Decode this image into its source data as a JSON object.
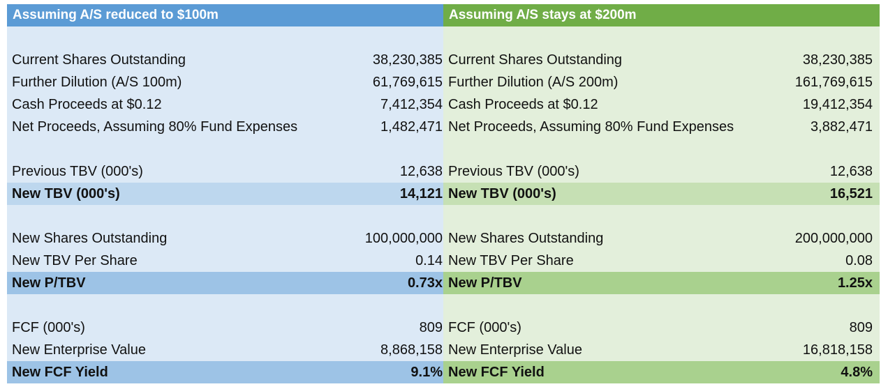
{
  "left": {
    "header": "Assuming A/S reduced to $100m",
    "rows": [
      {
        "label": "Current Shares Outstanding",
        "value": "38,230,385"
      },
      {
        "label": "Further Dilution (A/S 100m)",
        "value": "61,769,615"
      },
      {
        "label": "Cash Proceeds at $0.12",
        "value": "7,412,354"
      },
      {
        "label": "Net Proceeds, Assuming 80% Fund Expenses",
        "value": "1,482,471"
      },
      {
        "label": "Previous TBV (000's)",
        "value": "12,638"
      },
      {
        "label": "New TBV (000's)",
        "value": "14,121"
      },
      {
        "label": "New Shares Outstanding",
        "value": "100,000,000"
      },
      {
        "label": "New TBV Per Share",
        "value": "0.14"
      },
      {
        "label": "New P/TBV",
        "value": "0.73x"
      },
      {
        "label": "FCF (000's)",
        "value": "809"
      },
      {
        "label": "New Enterprise Value",
        "value": "8,868,158"
      },
      {
        "label": "New FCF Yield",
        "value": "9.1%"
      }
    ]
  },
  "right": {
    "header": "Assuming A/S stays at $200m",
    "rows": [
      {
        "label": "Current Shares Outstanding",
        "value": "38,230,385"
      },
      {
        "label": "Further Dilution (A/S 200m)",
        "value": "161,769,615"
      },
      {
        "label": "Cash Proceeds at $0.12",
        "value": "19,412,354"
      },
      {
        "label": "Net Proceeds, Assuming 80% Fund Expenses",
        "value": "3,882,471"
      },
      {
        "label": "Previous TBV (000's)",
        "value": "12,638"
      },
      {
        "label": "New TBV (000's)",
        "value": "16,521"
      },
      {
        "label": "New Shares Outstanding",
        "value": "200,000,000"
      },
      {
        "label": "New TBV Per Share",
        "value": "0.08"
      },
      {
        "label": "New P/TBV",
        "value": "1.25x"
      },
      {
        "label": "FCF (000's)",
        "value": "809"
      },
      {
        "label": "New Enterprise Value",
        "value": "16,818,158"
      },
      {
        "label": "New FCF Yield",
        "value": "4.8%"
      }
    ]
  },
  "colors": {
    "left_header": "#5b9bd5",
    "left_bg": "#dce9f6",
    "left_highlight_light": "#bdd7ee",
    "left_highlight_strong": "#9dc3e6",
    "right_header": "#70ad47",
    "right_bg": "#e3efdb",
    "right_highlight_light": "#c6e0b4",
    "right_highlight_strong": "#a9d18e"
  }
}
